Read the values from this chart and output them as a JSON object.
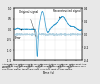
{
  "xlabel": "Time (s)",
  "xlim": [
    1.054,
    1.714
  ],
  "ylim_left": [
    -1.5,
    1.0
  ],
  "ylim_right": [
    -0.4,
    0.4
  ],
  "original_color": "#3399cc",
  "error_color": "#aaccdd",
  "background_color": "#e8e8e8",
  "plot_bg": "#ffffff",
  "annotation_original": "Original signal",
  "annotation_reconstructed": "Reconstructed signal",
  "annotation_error": "Error",
  "yticks_left": [
    -1.5,
    -1.0,
    -0.5,
    0.0,
    0.5,
    1.0
  ],
  "yticks_right": [
    -0.4,
    -0.2,
    0.0,
    0.2,
    0.4
  ],
  "xticks": [
    1.054,
    1.154,
    1.254,
    1.354,
    1.454,
    1.554,
    1.654
  ],
  "caption_line1": "Although the waveform is very different from a normal sinus beat, the",
  "caption_line2": "fidelity of the compression and reconstruction algorithm remains very",
  "caption_line3": "good.",
  "caption_line4": "The error signal timescale axis is on the right of this figure."
}
